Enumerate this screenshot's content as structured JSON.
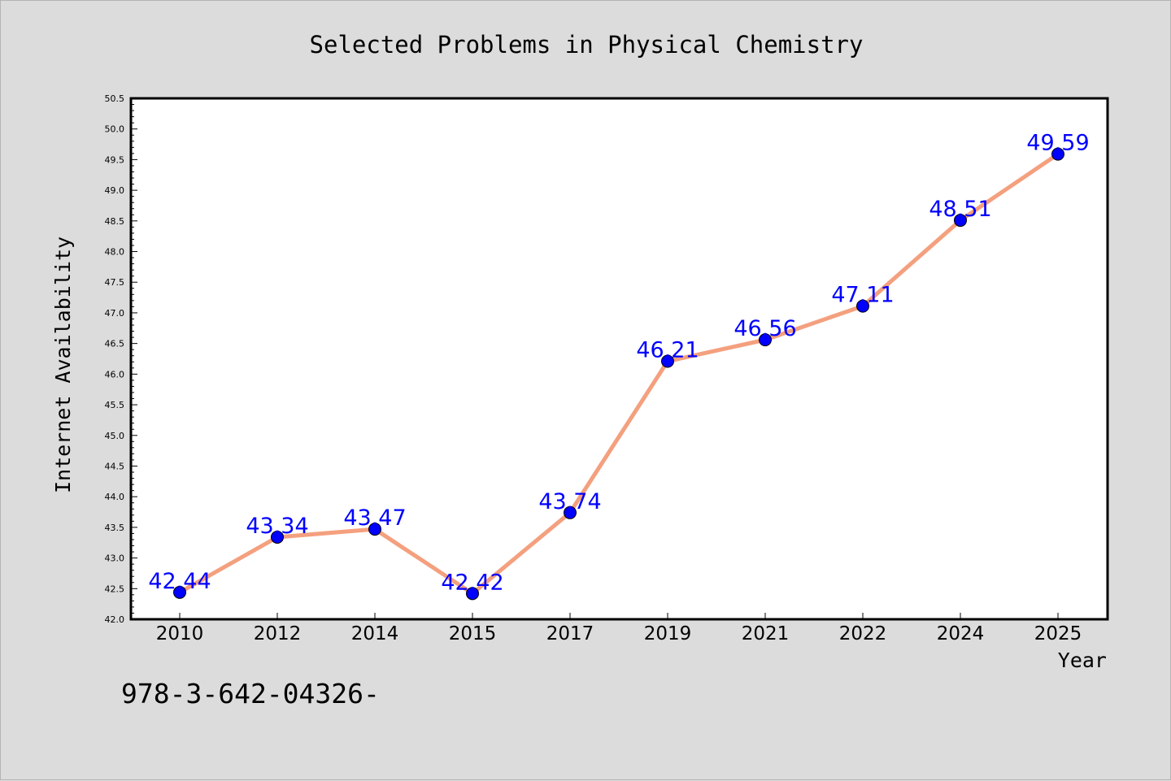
{
  "chart_data": {
    "type": "line",
    "title": "Selected Problems in Physical Chemistry",
    "xlabel": "Year",
    "ylabel": "Internet Availability",
    "categories": [
      "2010",
      "2012",
      "2014",
      "2015",
      "2017",
      "2019",
      "2021",
      "2022",
      "2024",
      "2025"
    ],
    "series": [
      {
        "values": [
          42.44,
          43.34,
          43.47,
          42.42,
          43.74,
          46.21,
          46.56,
          47.11,
          48.51,
          49.59
        ],
        "value_labels": [
          "42.44",
          "43.34",
          "43.47",
          "42.42",
          "43.74",
          "46.21",
          "46.56",
          "47.11",
          "48.51",
          "49.59"
        ],
        "line_color": "#f4a07e",
        "marker_color": "#0000ff",
        "label_color": "#0000ff"
      }
    ],
    "ylim": [
      42.0,
      50.5
    ],
    "yticks": [
      "42.0",
      "42.5",
      "43.0",
      "43.5",
      "44.0",
      "44.5",
      "45.0",
      "45.5",
      "46.0",
      "46.5",
      "47.0",
      "47.5",
      "48.0",
      "48.5",
      "49.0",
      "49.5",
      "50.0",
      "50.5"
    ],
    "grid": false,
    "background": "#dcdcdc",
    "plot_background": "#ffffff"
  },
  "footer_text": "978-3-642-04326-"
}
